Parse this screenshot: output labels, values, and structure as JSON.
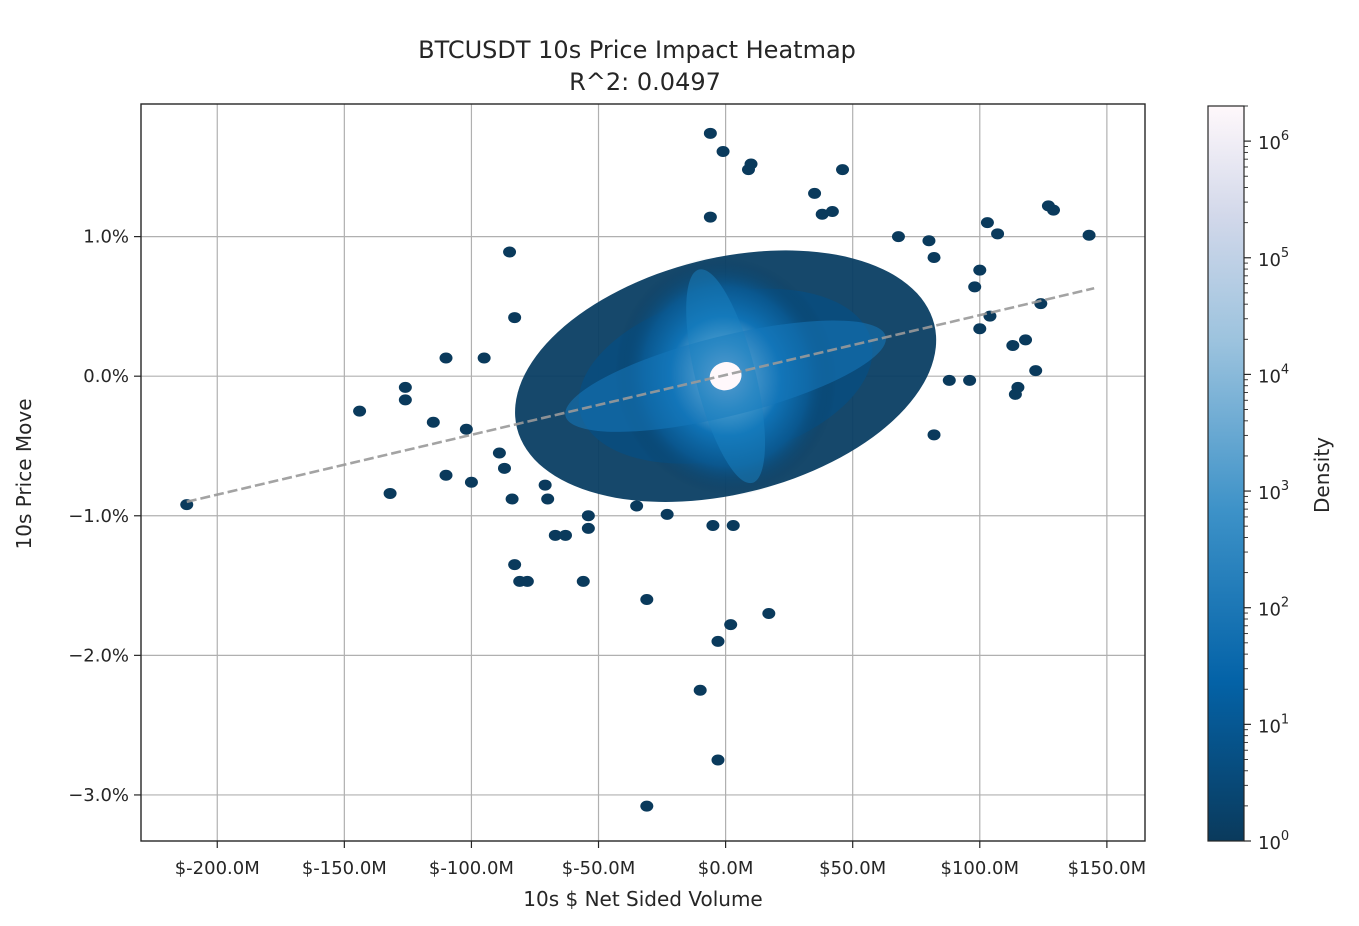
{
  "chart_data": {
    "type": "heatmap",
    "title": "BTCUSDT 10s Price Impact Heatmap",
    "subtitle": "R^2: 0.0497",
    "xlabel": "10s $ Net Sided Volume",
    "ylabel": "10s Price Move",
    "xlim": [
      -230,
      165
    ],
    "ylim": [
      -3.33,
      1.95
    ],
    "x_ticks": [
      {
        "value": -200,
        "label": "$-200.0M"
      },
      {
        "value": -150,
        "label": "$-150.0M"
      },
      {
        "value": -100,
        "label": "$-100.0M"
      },
      {
        "value": -50,
        "label": "$-50.0M"
      },
      {
        "value": 0,
        "label": "$0.0M"
      },
      {
        "value": 50,
        "label": "$50.0M"
      },
      {
        "value": 100,
        "label": "$100.0M"
      },
      {
        "value": 150,
        "label": "$150.0M"
      }
    ],
    "y_ticks": [
      {
        "value": 1.0,
        "label": "1.0%"
      },
      {
        "value": 0.0,
        "label": "0.0%"
      },
      {
        "value": -1.0,
        "label": "−1.0%"
      },
      {
        "value": -2.0,
        "label": "−2.0%"
      },
      {
        "value": -3.0,
        "label": "−3.0%"
      }
    ],
    "grid": true,
    "fit_line": {
      "x": [
        -212,
        145
      ],
      "y": [
        -0.9,
        0.63
      ],
      "style": "dashed"
    },
    "outliers": [
      {
        "x": -212,
        "y": -0.92
      },
      {
        "x": -144,
        "y": -0.25
      },
      {
        "x": -132,
        "y": -0.84
      },
      {
        "x": -126,
        "y": -0.08
      },
      {
        "x": -126,
        "y": -0.17
      },
      {
        "x": -115,
        "y": -0.33
      },
      {
        "x": -110,
        "y": 0.13
      },
      {
        "x": -110,
        "y": -0.71
      },
      {
        "x": -102,
        "y": -0.38
      },
      {
        "x": -100,
        "y": -0.76
      },
      {
        "x": -95,
        "y": 0.13
      },
      {
        "x": -89,
        "y": -0.55
      },
      {
        "x": -87,
        "y": -0.66
      },
      {
        "x": -85,
        "y": 0.89
      },
      {
        "x": -84,
        "y": -0.88
      },
      {
        "x": -83,
        "y": 0.42
      },
      {
        "x": -83,
        "y": -1.35
      },
      {
        "x": -81,
        "y": -1.47
      },
      {
        "x": -78,
        "y": -1.47
      },
      {
        "x": -71,
        "y": -0.78
      },
      {
        "x": -70,
        "y": -0.88
      },
      {
        "x": -67,
        "y": -1.14
      },
      {
        "x": -63,
        "y": -1.14
      },
      {
        "x": -56,
        "y": -1.47
      },
      {
        "x": -54,
        "y": -1.0
      },
      {
        "x": -54,
        "y": -1.09
      },
      {
        "x": -35,
        "y": -0.93
      },
      {
        "x": -31,
        "y": -1.6
      },
      {
        "x": -31,
        "y": -3.08
      },
      {
        "x": -23,
        "y": -0.99
      },
      {
        "x": -10,
        "y": -2.25
      },
      {
        "x": -6,
        "y": 1.74
      },
      {
        "x": -6,
        "y": 1.14
      },
      {
        "x": -5,
        "y": -1.07
      },
      {
        "x": -3,
        "y": -2.75
      },
      {
        "x": -3,
        "y": -1.9
      },
      {
        "x": -1,
        "y": 1.61
      },
      {
        "x": 2,
        "y": -1.78
      },
      {
        "x": 3,
        "y": -1.07
      },
      {
        "x": 9,
        "y": 1.48
      },
      {
        "x": 10,
        "y": 1.52
      },
      {
        "x": 17,
        "y": -1.7
      },
      {
        "x": 35,
        "y": 1.31
      },
      {
        "x": 38,
        "y": 1.16
      },
      {
        "x": 42,
        "y": 1.18
      },
      {
        "x": 46,
        "y": 1.48
      },
      {
        "x": 68,
        "y": 1.0
      },
      {
        "x": 80,
        "y": 0.97
      },
      {
        "x": 82,
        "y": 0.85
      },
      {
        "x": 82,
        "y": -0.42
      },
      {
        "x": 88,
        "y": -0.03
      },
      {
        "x": 96,
        "y": -0.03
      },
      {
        "x": 98,
        "y": 0.64
      },
      {
        "x": 100,
        "y": 0.76
      },
      {
        "x": 100,
        "y": 0.34
      },
      {
        "x": 103,
        "y": 1.1
      },
      {
        "x": 104,
        "y": 0.43
      },
      {
        "x": 107,
        "y": 1.02
      },
      {
        "x": 113,
        "y": 0.22
      },
      {
        "x": 114,
        "y": -0.13
      },
      {
        "x": 115,
        "y": -0.08
      },
      {
        "x": 118,
        "y": 0.26
      },
      {
        "x": 122,
        "y": 0.04
      },
      {
        "x": 124,
        "y": 0.52
      },
      {
        "x": 127,
        "y": 1.22
      },
      {
        "x": 129,
        "y": 1.19
      },
      {
        "x": 143,
        "y": 1.01
      }
    ],
    "colorbar": {
      "label": "Density",
      "scale": "log",
      "min": 1,
      "max": 2000000,
      "ticks": [
        {
          "value": 1,
          "base": "10",
          "exp": "0"
        },
        {
          "value": 10,
          "base": "10",
          "exp": "1"
        },
        {
          "value": 100,
          "base": "10",
          "exp": "2"
        },
        {
          "value": 1000,
          "base": "10",
          "exp": "3"
        },
        {
          "value": 10000,
          "base": "10",
          "exp": "4"
        },
        {
          "value": 100000,
          "base": "10",
          "exp": "5"
        },
        {
          "value": 1000000,
          "base": "10",
          "exp": "6"
        }
      ],
      "colors": [
        "#0a3a5c",
        "#0463a8",
        "#3d92c8",
        "#9cc3de",
        "#d2d8ea",
        "#fff8fb"
      ]
    }
  }
}
